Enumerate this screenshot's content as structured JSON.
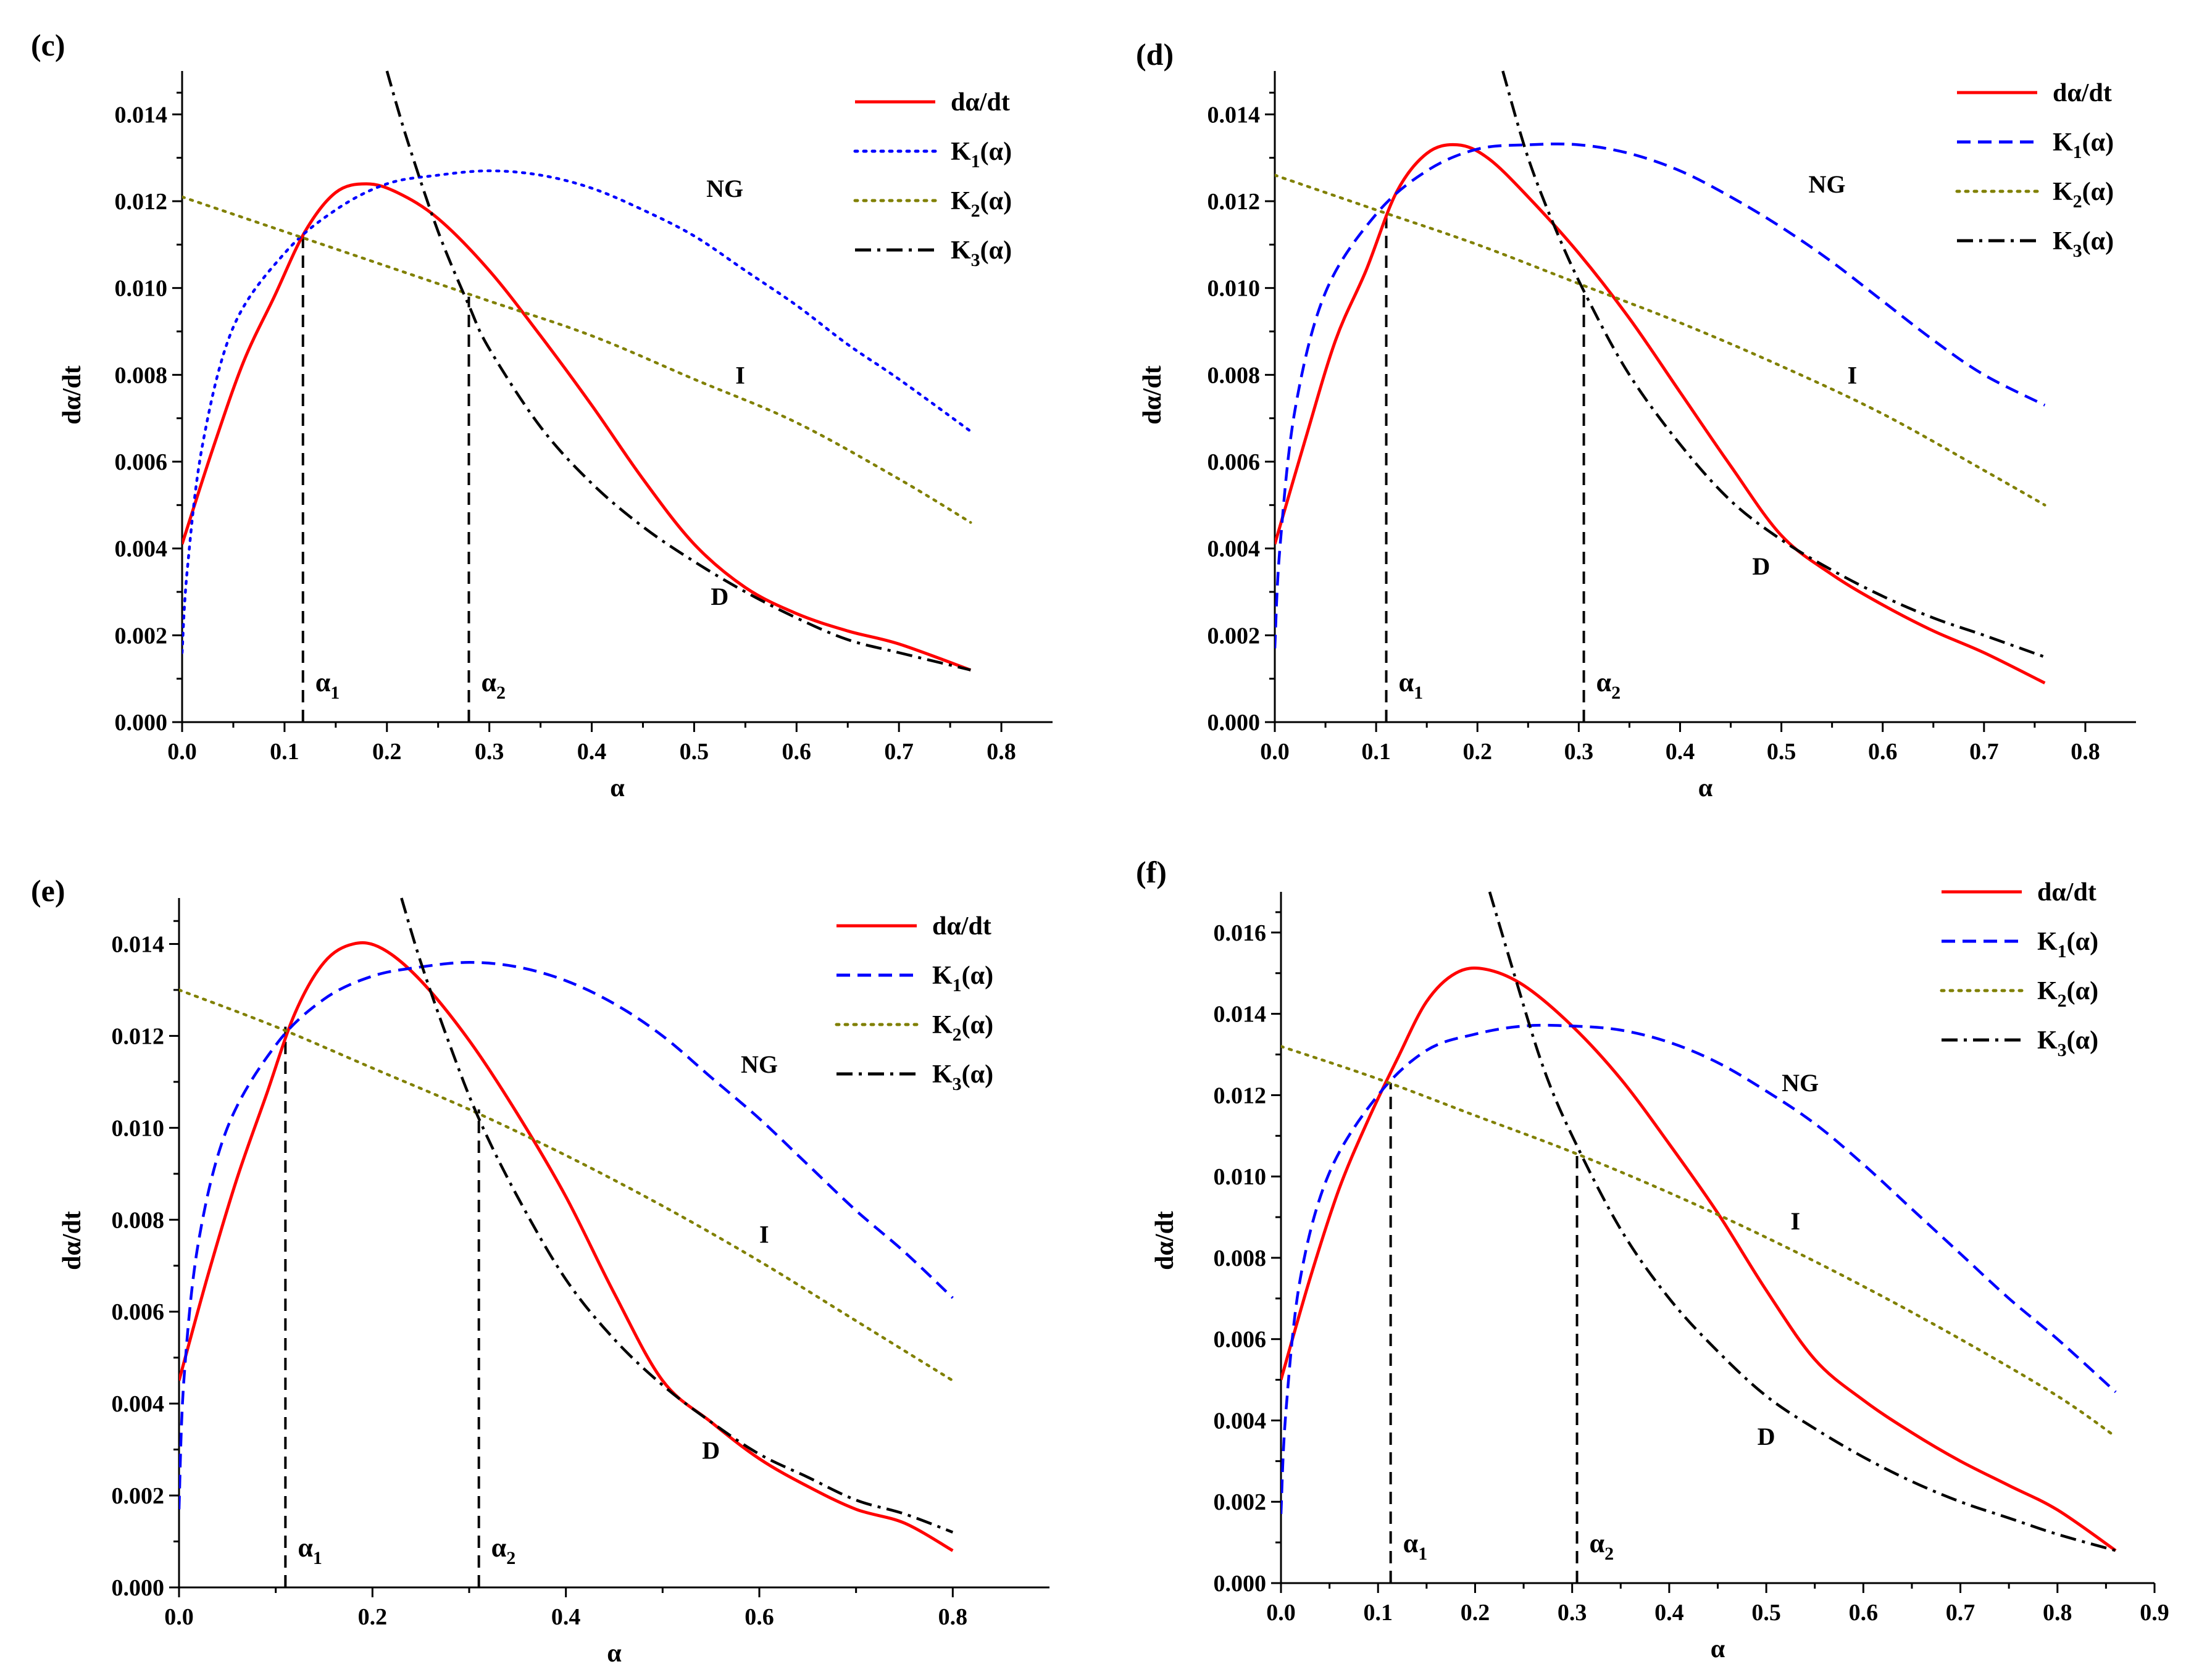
{
  "chart_data": [
    {
      "panel": "(c)",
      "type": "line",
      "xlabel": "α",
      "ylabel": "dα/dt",
      "xlim": [
        0,
        0.85
      ],
      "ylim": [
        0,
        0.015
      ],
      "xticks": [
        "0.0",
        "0.1",
        "0.2",
        "0.3",
        "0.4",
        "0.5",
        "0.6",
        "0.7",
        "0.8"
      ],
      "xtick_values": [
        0,
        0.1,
        0.2,
        0.3,
        0.4,
        0.5,
        0.6,
        0.7,
        0.8
      ],
      "yticks": [
        "0.000",
        "0.002",
        "0.004",
        "0.006",
        "0.008",
        "0.010",
        "0.012",
        "0.014"
      ],
      "ytick_values": [
        0,
        0.002,
        0.004,
        0.006,
        0.008,
        0.01,
        0.012,
        0.014
      ],
      "series": [
        {
          "name": "dα/dt",
          "color": "#ff0000",
          "dash": "solid",
          "x": [
            0,
            0.03,
            0.06,
            0.09,
            0.12,
            0.15,
            0.18,
            0.21,
            0.25,
            0.3,
            0.35,
            0.4,
            0.45,
            0.5,
            0.55,
            0.6,
            0.65,
            0.7,
            0.77
          ],
          "y": [
            0.0041,
            0.0063,
            0.0083,
            0.0098,
            0.0113,
            0.0122,
            0.0124,
            0.0122,
            0.0116,
            0.0104,
            0.0089,
            0.0073,
            0.0056,
            0.0041,
            0.0031,
            0.0025,
            0.0021,
            0.0018,
            0.0012
          ]
        },
        {
          "name": "K1(α)",
          "color": "#0000ff",
          "dash": "dot",
          "x": [
            0,
            0.005,
            0.02,
            0.05,
            0.1,
            0.15,
            0.2,
            0.25,
            0.3,
            0.35,
            0.4,
            0.45,
            0.5,
            0.55,
            0.6,
            0.65,
            0.7,
            0.77
          ],
          "y": [
            0.0016,
            0.0035,
            0.0064,
            0.0091,
            0.0108,
            0.0118,
            0.0124,
            0.0126,
            0.0127,
            0.0126,
            0.0123,
            0.0118,
            0.0112,
            0.0104,
            0.0096,
            0.0087,
            0.0079,
            0.0067
          ]
        },
        {
          "name": "K2(α)",
          "color": "#808000",
          "dash": "dot",
          "x": [
            0,
            0.1,
            0.2,
            0.3,
            0.4,
            0.5,
            0.6,
            0.7,
            0.77
          ],
          "y": [
            0.0121,
            0.0113,
            0.0105,
            0.0097,
            0.0089,
            0.0079,
            0.0069,
            0.0056,
            0.0046
          ]
        },
        {
          "name": "K3(α)",
          "color": "#000000",
          "dash": "dashdot",
          "x": [
            0.2,
            0.22,
            0.25,
            0.28,
            0.3,
            0.35,
            0.4,
            0.45,
            0.5,
            0.55,
            0.6,
            0.65,
            0.7,
            0.77
          ],
          "y": [
            0.015,
            0.0134,
            0.0113,
            0.0096,
            0.0086,
            0.0068,
            0.0055,
            0.0045,
            0.0037,
            0.003,
            0.0024,
            0.0019,
            0.0016,
            0.0012
          ]
        }
      ],
      "markers": [
        {
          "x": 0.118,
          "y_top": 0.0113,
          "label": "α",
          "sub": "1"
        },
        {
          "x": 0.28,
          "y_top": 0.0098,
          "label": "α",
          "sub": "2"
        }
      ],
      "regions": [
        {
          "text": "NG",
          "x": 0.53,
          "y": 0.0121
        },
        {
          "text": "I",
          "x": 0.545,
          "y": 0.0078
        },
        {
          "text": "D",
          "x": 0.525,
          "y": 0.0027
        }
      ],
      "legend": [
        {
          "text": "dα/dt",
          "sub": ""
        },
        {
          "text": "K",
          "sub": "1",
          "after": "(α)"
        },
        {
          "text": "K",
          "sub": "2",
          "after": "(α)"
        },
        {
          "text": "K",
          "sub": "3",
          "after": "(α)"
        }
      ]
    },
    {
      "panel": "(d)",
      "type": "line",
      "xlabel": "α",
      "ylabel": "dα/dt",
      "xlim": [
        0,
        0.85
      ],
      "ylim": [
        0,
        0.015
      ],
      "xticks": [
        "0.0",
        "0.1",
        "0.2",
        "0.3",
        "0.4",
        "0.5",
        "0.6",
        "0.7",
        "0.8"
      ],
      "xtick_values": [
        0,
        0.1,
        0.2,
        0.3,
        0.4,
        0.5,
        0.6,
        0.7,
        0.8
      ],
      "yticks": [
        "0.000",
        "0.002",
        "0.004",
        "0.006",
        "0.008",
        "0.010",
        "0.012",
        "0.014"
      ],
      "ytick_values": [
        0,
        0.002,
        0.004,
        0.006,
        0.008,
        0.01,
        0.012,
        0.014
      ],
      "series": [
        {
          "name": "dα/dt",
          "color": "#ff0000",
          "dash": "solid",
          "x": [
            0,
            0.03,
            0.06,
            0.09,
            0.12,
            0.15,
            0.18,
            0.21,
            0.25,
            0.3,
            0.35,
            0.4,
            0.45,
            0.5,
            0.55,
            0.6,
            0.65,
            0.7,
            0.76
          ],
          "y": [
            0.0041,
            0.0065,
            0.0088,
            0.0104,
            0.0122,
            0.0131,
            0.0133,
            0.013,
            0.0121,
            0.0108,
            0.0093,
            0.0076,
            0.0059,
            0.0043,
            0.0034,
            0.0027,
            0.0021,
            0.0016,
            0.0009
          ]
        },
        {
          "name": "K1(α)",
          "color": "#0000ff",
          "dash": "dash",
          "x": [
            0,
            0.005,
            0.02,
            0.05,
            0.1,
            0.15,
            0.2,
            0.25,
            0.3,
            0.35,
            0.4,
            0.45,
            0.5,
            0.55,
            0.6,
            0.65,
            0.7,
            0.76
          ],
          "y": [
            0.0017,
            0.004,
            0.0072,
            0.0099,
            0.0117,
            0.0127,
            0.0132,
            0.0133,
            0.0133,
            0.0131,
            0.0127,
            0.0121,
            0.0114,
            0.0106,
            0.0097,
            0.0088,
            0.008,
            0.0073
          ]
        },
        {
          "name": "K2(α)",
          "color": "#808000",
          "dash": "dot",
          "x": [
            0,
            0.1,
            0.2,
            0.3,
            0.4,
            0.5,
            0.6,
            0.7,
            0.76
          ],
          "y": [
            0.0126,
            0.0118,
            0.011,
            0.0101,
            0.0092,
            0.0082,
            0.0071,
            0.0058,
            0.005
          ]
        },
        {
          "name": "K3(α)",
          "color": "#000000",
          "dash": "dashdot",
          "x": [
            0.225,
            0.25,
            0.28,
            0.31,
            0.35,
            0.4,
            0.45,
            0.5,
            0.55,
            0.6,
            0.65,
            0.7,
            0.76
          ],
          "y": [
            0.015,
            0.013,
            0.0112,
            0.0097,
            0.008,
            0.0064,
            0.0051,
            0.0042,
            0.0035,
            0.0029,
            0.0024,
            0.002,
            0.0015
          ]
        }
      ],
      "markers": [
        {
          "x": 0.11,
          "y_top": 0.0117,
          "label": "α",
          "sub": "1"
        },
        {
          "x": 0.305,
          "y_top": 0.01,
          "label": "α",
          "sub": "2"
        }
      ],
      "regions": [
        {
          "text": "NG",
          "x": 0.545,
          "y": 0.0122
        },
        {
          "text": "I",
          "x": 0.57,
          "y": 0.0078
        },
        {
          "text": "D",
          "x": 0.48,
          "y": 0.0034
        }
      ],
      "legend": [
        {
          "text": "dα/dt",
          "sub": ""
        },
        {
          "text": "K",
          "sub": "1",
          "after": "(α)"
        },
        {
          "text": "K",
          "sub": "2",
          "after": "(α)"
        },
        {
          "text": "K",
          "sub": "3",
          "after": "(α)"
        }
      ]
    },
    {
      "panel": "(e)",
      "type": "line",
      "xlabel": "α",
      "ylabel": "dα/dt",
      "xlim": [
        0,
        0.9
      ],
      "ylim": [
        0,
        0.015
      ],
      "xticks": [
        "0.0",
        "0.2",
        "0.4",
        "0.6",
        "0.8"
      ],
      "xtick_values": [
        0,
        0.2,
        0.4,
        0.6,
        0.8
      ],
      "yticks": [
        "0.000",
        "0.002",
        "0.004",
        "0.006",
        "0.008",
        "0.010",
        "0.012",
        "0.014"
      ],
      "ytick_values": [
        0,
        0.002,
        0.004,
        0.006,
        0.008,
        0.01,
        0.012,
        0.014
      ],
      "series": [
        {
          "name": "dα/dt",
          "color": "#ff0000",
          "dash": "solid",
          "x": [
            0,
            0.03,
            0.06,
            0.09,
            0.12,
            0.15,
            0.18,
            0.21,
            0.25,
            0.3,
            0.35,
            0.4,
            0.45,
            0.5,
            0.55,
            0.6,
            0.65,
            0.7,
            0.75,
            0.8
          ],
          "y": [
            0.0045,
            0.0068,
            0.0089,
            0.0107,
            0.0125,
            0.0136,
            0.014,
            0.0139,
            0.0132,
            0.0119,
            0.0103,
            0.0085,
            0.0064,
            0.0045,
            0.0036,
            0.0028,
            0.0022,
            0.0017,
            0.0014,
            0.0008
          ]
        },
        {
          "name": "K1(α)",
          "color": "#0000ff",
          "dash": "dash",
          "x": [
            0,
            0.005,
            0.02,
            0.05,
            0.1,
            0.15,
            0.2,
            0.25,
            0.3,
            0.35,
            0.4,
            0.45,
            0.5,
            0.55,
            0.6,
            0.65,
            0.7,
            0.75,
            0.8
          ],
          "y": [
            0.0017,
            0.0045,
            0.0075,
            0.01,
            0.0118,
            0.0128,
            0.0133,
            0.0135,
            0.0136,
            0.0135,
            0.0132,
            0.0127,
            0.012,
            0.0111,
            0.0102,
            0.0092,
            0.0082,
            0.0073,
            0.0063
          ]
        },
        {
          "name": "K2(α)",
          "color": "#808000",
          "dash": "dot",
          "x": [
            0,
            0.1,
            0.2,
            0.3,
            0.4,
            0.5,
            0.6,
            0.7,
            0.8
          ],
          "y": [
            0.013,
            0.0122,
            0.0113,
            0.0104,
            0.0094,
            0.0083,
            0.0071,
            0.0058,
            0.0045
          ]
        },
        {
          "name": "K3(α)",
          "color": "#000000",
          "dash": "dashdot",
          "x": [
            0.23,
            0.25,
            0.28,
            0.31,
            0.35,
            0.4,
            0.45,
            0.5,
            0.55,
            0.6,
            0.65,
            0.7,
            0.75,
            0.8
          ],
          "y": [
            0.015,
            0.0136,
            0.0118,
            0.0102,
            0.0085,
            0.0067,
            0.0054,
            0.0044,
            0.0036,
            0.0029,
            0.0024,
            0.0019,
            0.0016,
            0.0012
          ]
        }
      ],
      "markers": [
        {
          "x": 0.11,
          "y_top": 0.0122,
          "label": "α",
          "sub": "1"
        },
        {
          "x": 0.31,
          "y_top": 0.0104,
          "label": "α",
          "sub": "2"
        }
      ],
      "regions": [
        {
          "text": "NG",
          "x": 0.6,
          "y": 0.0112
        },
        {
          "text": "I",
          "x": 0.605,
          "y": 0.0075
        },
        {
          "text": "D",
          "x": 0.55,
          "y": 0.0028
        }
      ],
      "legend": [
        {
          "text": "dα/dt",
          "sub": ""
        },
        {
          "text": "K",
          "sub": "1",
          "after": "(α)"
        },
        {
          "text": "K",
          "sub": "2",
          "after": "(α)"
        },
        {
          "text": "K",
          "sub": "3",
          "after": "(α)"
        }
      ]
    },
    {
      "panel": "(f)",
      "type": "line",
      "xlabel": "α",
      "ylabel": "dα/dt",
      "xlim": [
        0,
        0.9
      ],
      "ylim": [
        0,
        0.017
      ],
      "xticks": [
        "0.0",
        "0.1",
        "0.2",
        "0.3",
        "0.4",
        "0.5",
        "0.6",
        "0.7",
        "0.8",
        "0.9"
      ],
      "xtick_values": [
        0,
        0.1,
        0.2,
        0.3,
        0.4,
        0.5,
        0.6,
        0.7,
        0.8,
        0.9
      ],
      "yticks": [
        "0.000",
        "0.002",
        "0.004",
        "0.006",
        "0.008",
        "0.010",
        "0.012",
        "0.014",
        "0.016"
      ],
      "ytick_values": [
        0,
        0.002,
        0.004,
        0.006,
        0.008,
        0.01,
        0.012,
        0.014,
        0.016
      ],
      "series": [
        {
          "name": "dα/dt",
          "color": "#ff0000",
          "dash": "solid",
          "x": [
            0,
            0.03,
            0.06,
            0.09,
            0.12,
            0.15,
            0.18,
            0.21,
            0.25,
            0.3,
            0.35,
            0.4,
            0.45,
            0.5,
            0.55,
            0.6,
            0.65,
            0.7,
            0.75,
            0.8,
            0.86
          ],
          "y": [
            0.005,
            0.0075,
            0.0097,
            0.0114,
            0.0129,
            0.0143,
            0.015,
            0.0151,
            0.0147,
            0.0137,
            0.0124,
            0.0108,
            0.0091,
            0.0072,
            0.0055,
            0.0045,
            0.0037,
            0.003,
            0.0024,
            0.0018,
            0.0008
          ]
        },
        {
          "name": "K1(α)",
          "color": "#0000ff",
          "dash": "dash",
          "x": [
            0,
            0.005,
            0.02,
            0.05,
            0.1,
            0.15,
            0.2,
            0.25,
            0.3,
            0.35,
            0.4,
            0.45,
            0.5,
            0.55,
            0.6,
            0.65,
            0.7,
            0.75,
            0.8,
            0.86
          ],
          "y": [
            0.0017,
            0.0042,
            0.0075,
            0.0101,
            0.012,
            0.0131,
            0.0135,
            0.0137,
            0.0137,
            0.0136,
            0.0133,
            0.0128,
            0.0121,
            0.0113,
            0.0103,
            0.0092,
            0.0081,
            0.007,
            0.006,
            0.0047
          ]
        },
        {
          "name": "K2(α)",
          "color": "#808000",
          "dash": "dot",
          "x": [
            0,
            0.1,
            0.2,
            0.3,
            0.4,
            0.5,
            0.6,
            0.7,
            0.8,
            0.86
          ],
          "y": [
            0.0132,
            0.0124,
            0.0115,
            0.0106,
            0.0096,
            0.0085,
            0.0073,
            0.006,
            0.0046,
            0.0036
          ]
        },
        {
          "name": "K3(α)",
          "color": "#000000",
          "dash": "dashdot",
          "x": [
            0.215,
            0.24,
            0.27,
            0.3,
            0.35,
            0.4,
            0.45,
            0.5,
            0.55,
            0.6,
            0.65,
            0.7,
            0.75,
            0.8,
            0.86
          ],
          "y": [
            0.017,
            0.015,
            0.0127,
            0.011,
            0.0087,
            0.007,
            0.0057,
            0.0046,
            0.0038,
            0.0031,
            0.0025,
            0.002,
            0.0016,
            0.0012,
            0.0008
          ]
        }
      ],
      "markers": [
        {
          "x": 0.113,
          "y_top": 0.0123,
          "label": "α",
          "sub": "1"
        },
        {
          "x": 0.305,
          "y_top": 0.0106,
          "label": "α",
          "sub": "2"
        }
      ],
      "regions": [
        {
          "text": "NG",
          "x": 0.535,
          "y": 0.0121
        },
        {
          "text": "I",
          "x": 0.53,
          "y": 0.0087
        },
        {
          "text": "D",
          "x": 0.5,
          "y": 0.0034
        }
      ],
      "legend": [
        {
          "text": "dα/dt",
          "sub": ""
        },
        {
          "text": "K",
          "sub": "1",
          "after": "(α)"
        },
        {
          "text": "K",
          "sub": "2",
          "after": "(α)"
        },
        {
          "text": "K",
          "sub": "3",
          "after": "(α)"
        }
      ]
    }
  ]
}
